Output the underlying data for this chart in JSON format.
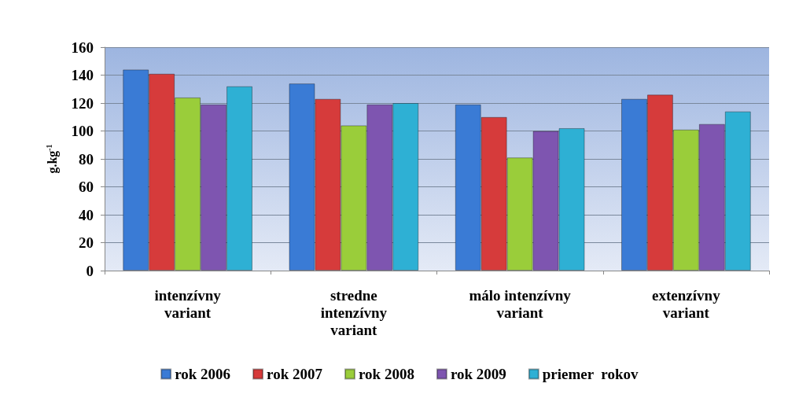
{
  "chart_data": {
    "type": "bar",
    "ylabel": "g.kg$^{-1}$",
    "categories": [
      "intenzívny\nvariant",
      "stredne\nintenzívny\nvariant",
      "málo intenzívny\nvariant",
      "extenzívny\nvariant"
    ],
    "series": [
      {
        "name": "rok 2006",
        "color": "#3a7bd5",
        "values": [
          144,
          134,
          119,
          123
        ]
      },
      {
        "name": "rok 2007",
        "color": "#d63b3b",
        "values": [
          141,
          123,
          110,
          126
        ]
      },
      {
        "name": "rok 2008",
        "color": "#9acd3a",
        "values": [
          124,
          104,
          81,
          101
        ]
      },
      {
        "name": "rok 2009",
        "color": "#7e55b0",
        "values": [
          119,
          119,
          100,
          105
        ]
      },
      {
        "name": "priemer  rokov",
        "color": "#2eb0d4",
        "values": [
          132,
          120,
          102,
          114
        ]
      }
    ],
    "ylim": [
      0,
      160
    ],
    "yticks": [
      0,
      20,
      40,
      60,
      80,
      100,
      120,
      140,
      160
    ],
    "grid": "y",
    "legend": "bottom"
  }
}
